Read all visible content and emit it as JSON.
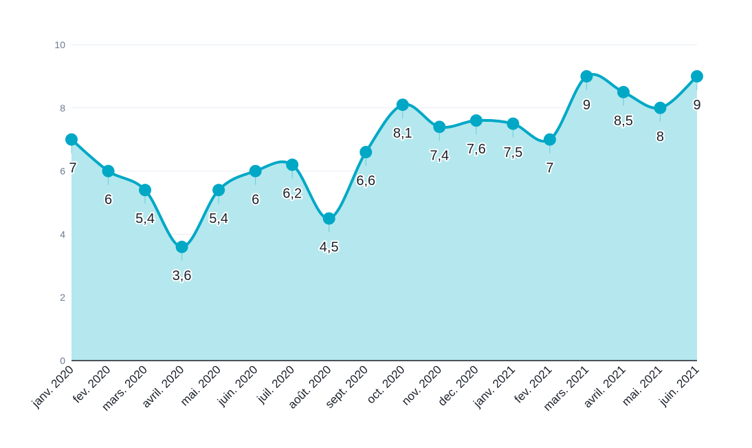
{
  "chart_data": {
    "type": "area",
    "categories": [
      "janv. 2020",
      "fev. 2020",
      "mars. 2020",
      "avril. 2020",
      "mai. 2020",
      "juin. 2020",
      "juil. 2020",
      "août. 2020",
      "sept. 2020",
      "oct. 2020",
      "nov. 2020",
      "dec. 2020",
      "janv. 2021",
      "fev. 2021",
      "mars. 2021",
      "avril. 2021",
      "mai. 2021",
      "juin. 2021"
    ],
    "values": [
      7,
      6,
      5.4,
      3.6,
      5.4,
      6,
      6.2,
      4.5,
      6.6,
      8.1,
      7.4,
      7.6,
      7.5,
      7,
      9,
      8.5,
      8,
      9
    ],
    "data_labels": [
      "7",
      "6",
      "5,4",
      "3,6",
      "5,4",
      "6",
      "6,2",
      "4,5",
      "6,6",
      "8,1",
      "7,4",
      "7,6",
      "7,5",
      "7",
      "9",
      "8,5",
      "8",
      "9"
    ],
    "title": "",
    "xlabel": "",
    "ylabel": "",
    "ylim": [
      0,
      10
    ],
    "yticks": [
      0,
      2,
      4,
      6,
      8,
      10
    ],
    "grid": true,
    "legend": "none",
    "smooth": true,
    "colors": {
      "line": "#00a8c6",
      "fill": "#b4e8ee",
      "grid": "#e6ebf0",
      "baseline": "#1a1f29"
    }
  }
}
